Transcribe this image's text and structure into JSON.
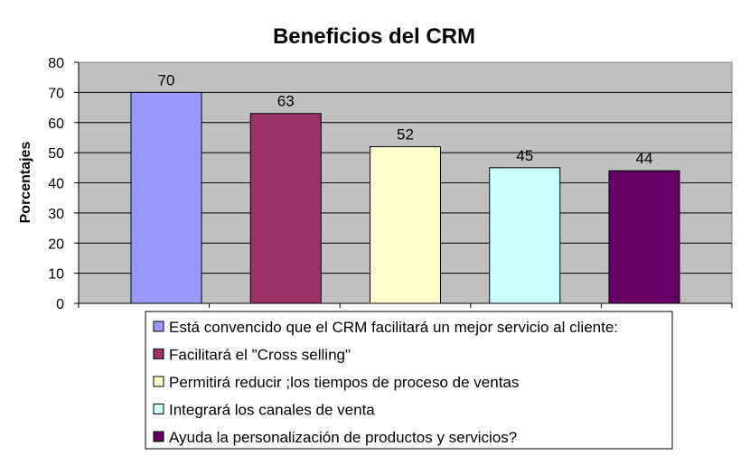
{
  "chart_data": {
    "type": "bar",
    "title": "Beneficios del CRM",
    "xlabel": "",
    "ylabel": "Porcentajes",
    "ylim": [
      0,
      80
    ],
    "yticks": [
      0,
      10,
      20,
      30,
      40,
      50,
      60,
      70,
      80
    ],
    "grid": true,
    "legend_position": "bottom",
    "series": [
      {
        "name": "Está convencido que el CRM facilitará un mejor servicio al cliente:",
        "value": 70,
        "color": "#9999ff"
      },
      {
        "name": "Facilitará el \"Cross selling\"",
        "value": 63,
        "color": "#993366"
      },
      {
        "name": "Permitirá reducir ;los tiempos de proceso de ventas",
        "value": 52,
        "color": "#ffffcc"
      },
      {
        "name": "Integrará los canales de venta",
        "value": 45,
        "color": "#ccffff"
      },
      {
        "name": "Ayuda la personalización de productos y servicios?",
        "value": 44,
        "color": "#660066"
      }
    ],
    "plot_background": "#c0c0c0"
  }
}
